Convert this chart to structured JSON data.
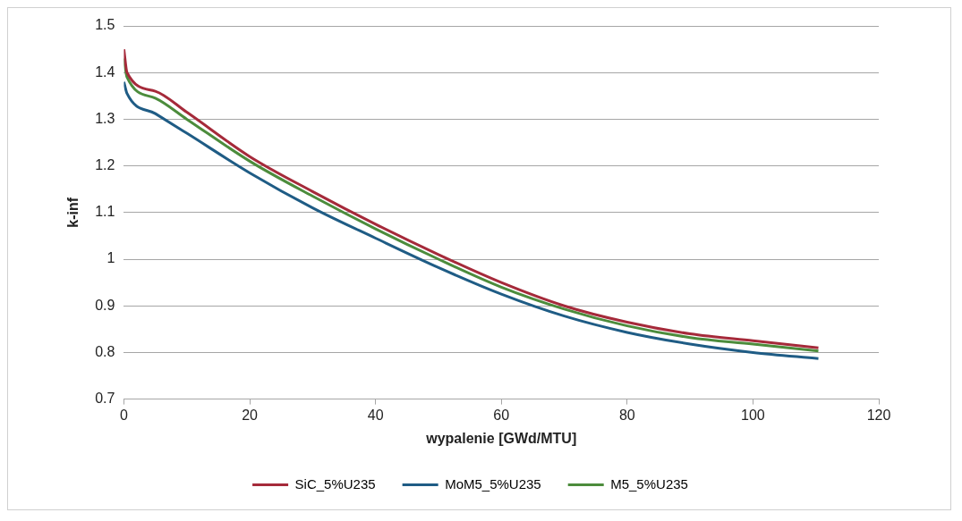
{
  "chart_data": {
    "type": "line",
    "xlabel": "wypalenie [GWd/MTU]",
    "ylabel": "k-inf",
    "x": [
      0,
      0.5,
      5,
      10,
      20,
      30,
      40,
      50,
      60,
      70,
      80,
      90,
      100,
      110.4
    ],
    "series": [
      {
        "name": "SiC_5%U235",
        "color": "#a52a3a",
        "values": [
          1.45,
          1.4,
          1.36,
          1.315,
          1.22,
          1.145,
          1.075,
          1.01,
          0.95,
          0.9,
          0.865,
          0.84,
          0.825,
          0.81
        ]
      },
      {
        "name": "MoM5_5%U235",
        "color": "#1f5c85",
        "values": [
          1.38,
          1.355,
          1.312,
          1.27,
          1.185,
          1.11,
          1.045,
          0.982,
          0.925,
          0.878,
          0.843,
          0.818,
          0.8,
          0.787
        ]
      },
      {
        "name": "M5_5%U235",
        "color": "#4c8c3c",
        "values": [
          1.43,
          1.39,
          1.345,
          1.3,
          1.21,
          1.135,
          1.065,
          1.0,
          0.94,
          0.893,
          0.857,
          0.832,
          0.818,
          0.803
        ]
      }
    ],
    "xlim": [
      0,
      120
    ],
    "xticks": [
      0,
      20,
      40,
      60,
      80,
      100,
      120
    ],
    "ylim": [
      0.7,
      1.5
    ],
    "yticks": [
      0.7,
      0.8,
      0.9,
      1,
      1.1,
      1.2,
      1.3,
      1.4,
      1.5
    ],
    "grid": "y",
    "legend": "bottom",
    "marker": "none",
    "line_style": "solid"
  }
}
